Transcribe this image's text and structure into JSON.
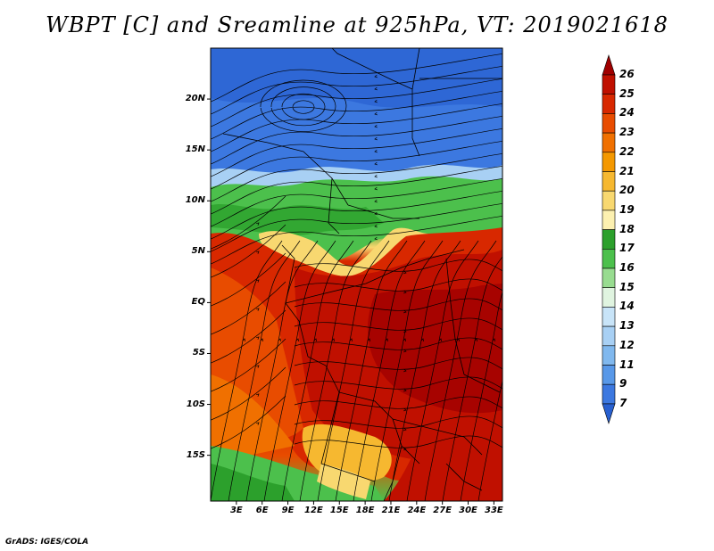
{
  "title": "WBPT [C] and Sreamline at 925hPa, VT: 2019021618",
  "footer": "GrADS: IGES/COLA",
  "map": {
    "lat_labels": [
      "20N",
      "15N",
      "10N",
      "5N",
      "EQ",
      "5S",
      "10S",
      "15S"
    ],
    "lat_values": [
      20,
      15,
      10,
      5,
      0,
      -5,
      -10,
      -15
    ],
    "lon_labels": [
      "3E",
      "6E",
      "9E",
      "12E",
      "15E",
      "18E",
      "21E",
      "24E",
      "27E",
      "30E",
      "33E"
    ],
    "lon_values": [
      3,
      6,
      9,
      12,
      15,
      18,
      21,
      24,
      27,
      30,
      33
    ],
    "lat_range": [
      -19.5,
      25
    ],
    "lon_range": [
      0,
      34
    ]
  },
  "colorbar": {
    "labels": [
      "26",
      "25",
      "24",
      "23",
      "22",
      "21",
      "20",
      "19",
      "18",
      "17",
      "16",
      "15",
      "14",
      "13",
      "12",
      "11",
      "9",
      "7"
    ],
    "colors": [
      "#a00000",
      "#c01000",
      "#d82800",
      "#e84c00",
      "#f07000",
      "#f49800",
      "#f6b830",
      "#f8d870",
      "#fcf0b0",
      "#2ca02c",
      "#4cc04c",
      "#98dc90",
      "#e0f4e0",
      "#c8e4f8",
      "#a8d0f4",
      "#80b8ee",
      "#5898e8",
      "#3c78e0",
      "#2860d0"
    ]
  }
}
